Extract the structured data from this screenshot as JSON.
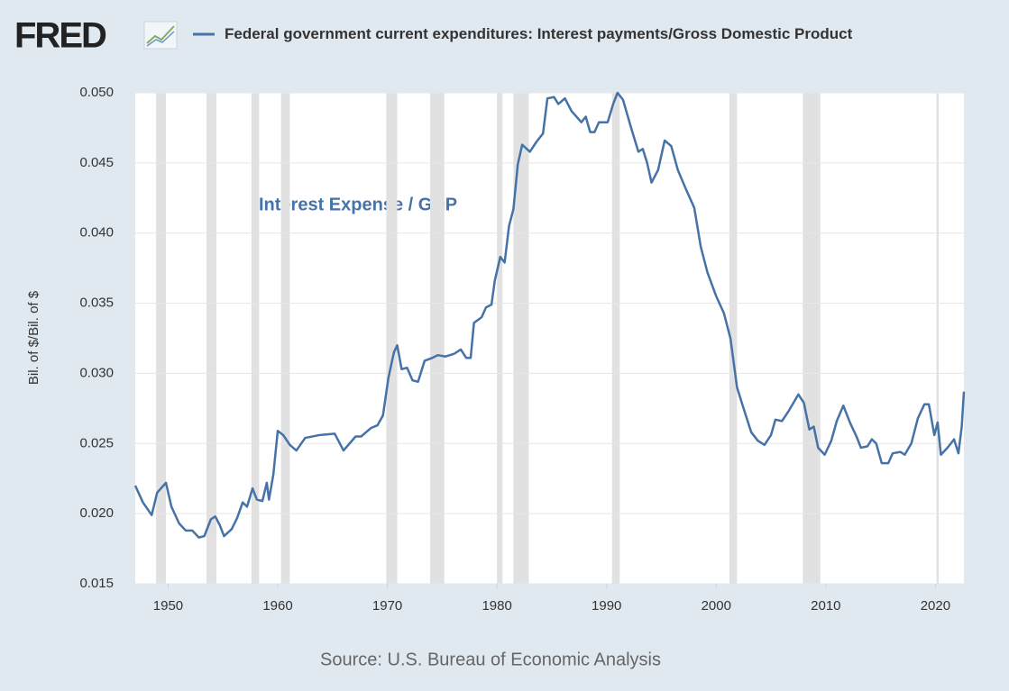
{
  "chart_data": {
    "type": "line",
    "logo": "FRED",
    "source": "Source: U.S. Bureau of Economic Analysis",
    "annotation": "Interest Expense / GDP",
    "ylabel": "Bil. of $/Bil. of $",
    "xlim": [
      1947,
      2022.6
    ],
    "xticks": [
      1950,
      1960,
      1970,
      1980,
      1990,
      2000,
      2010,
      2020
    ],
    "ylim": [
      0.015,
      0.05
    ],
    "yticks": [
      0.015,
      {
        "value": 0.02,
        "label": "0.020"
      },
      0.025,
      {
        "value": 0.03,
        "label": "0.030"
      },
      0.035,
      {
        "value": 0.04,
        "label": "0.040"
      },
      0.045,
      {
        "value": 0.05,
        "label": "0.050"
      }
    ],
    "grid": true,
    "recession_color": "#e1e1e1",
    "recessions": [
      [
        1948.9,
        1949.8
      ],
      [
        1953.5,
        1954.4
      ],
      [
        1957.6,
        1958.3
      ],
      [
        1960.3,
        1961.1
      ],
      [
        1969.9,
        1970.9
      ],
      [
        1973.9,
        1975.2
      ],
      [
        1980.0,
        1980.5
      ],
      [
        1981.5,
        1982.9
      ],
      [
        1990.5,
        1991.2
      ],
      [
        2001.2,
        2001.9
      ],
      [
        2007.9,
        2009.5
      ],
      [
        2020.1,
        2020.3
      ]
    ],
    "x": [
      1947.0,
      1947.7,
      1948.5,
      1949.0,
      1949.8,
      1950.3,
      1951.0,
      1951.6,
      1952.2,
      1952.8,
      1953.3,
      1953.9,
      1954.3,
      1954.7,
      1955.1,
      1955.8,
      1956.3,
      1956.8,
      1957.2,
      1957.7,
      1958.1,
      1958.6,
      1959.0,
      1959.2,
      1959.6,
      1960.0,
      1960.5,
      1961.1,
      1961.7,
      1962.5,
      1963.8,
      1965.2,
      1966.0,
      1967.1,
      1967.6,
      1968.5,
      1969.1,
      1969.6,
      1970.1,
      1970.6,
      1970.9,
      1971.3,
      1971.8,
      1972.3,
      1972.8,
      1973.4,
      1974.1,
      1974.6,
      1975.3,
      1976.1,
      1976.7,
      1977.2,
      1977.6,
      1977.9,
      1978.6,
      1979.0,
      1979.5,
      1979.8,
      1980.3,
      1980.7,
      1981.1,
      1981.5,
      1981.9,
      1982.3,
      1983.0,
      1983.6,
      1984.2,
      1984.6,
      1985.2,
      1985.6,
      1986.2,
      1986.8,
      1987.7,
      1988.1,
      1988.5,
      1988.9,
      1989.3,
      1990.1,
      1990.6,
      1991.0,
      1991.5,
      1992.2,
      1992.9,
      1993.3,
      1993.7,
      1994.1,
      1994.7,
      1995.3,
      1995.9,
      1996.5,
      1997.2,
      1998.0,
      1998.6,
      1999.2,
      2000.0,
      2000.7,
      2001.3,
      2001.9,
      2002.5,
      2003.2,
      2003.8,
      2004.4,
      2005.0,
      2005.4,
      2006.0,
      2006.6,
      2007.5,
      2008.0,
      2008.5,
      2008.9,
      2009.3,
      2009.9,
      2010.5,
      2011.0,
      2011.6,
      2012.2,
      2012.8,
      2013.2,
      2013.8,
      2014.2,
      2014.6,
      2015.1,
      2015.7,
      2016.1,
      2016.8,
      2017.2,
      2017.8,
      2018.4,
      2019.0,
      2019.4,
      2019.9,
      2020.2,
      2020.5,
      2021.1,
      2021.7,
      2022.1,
      2022.4,
      2022.6
    ],
    "series": [
      {
        "name": "Federal government current expenditures: Interest payments/Gross Domestic Product",
        "color": "#4572a7",
        "values": [
          0.022,
          0.0208,
          0.0199,
          0.0215,
          0.0222,
          0.0205,
          0.0193,
          0.0188,
          0.0188,
          0.0183,
          0.0184,
          0.0196,
          0.0198,
          0.0192,
          0.0184,
          0.0189,
          0.0197,
          0.0208,
          0.0205,
          0.0218,
          0.021,
          0.0209,
          0.0222,
          0.021,
          0.0228,
          0.0259,
          0.0256,
          0.0249,
          0.0245,
          0.0254,
          0.0256,
          0.0257,
          0.0245,
          0.0255,
          0.0255,
          0.0261,
          0.0263,
          0.027,
          0.0297,
          0.0315,
          0.032,
          0.0303,
          0.0304,
          0.0295,
          0.0294,
          0.0309,
          0.0311,
          0.0313,
          0.0312,
          0.0314,
          0.0317,
          0.0311,
          0.0311,
          0.0336,
          0.034,
          0.0347,
          0.0349,
          0.0366,
          0.0383,
          0.0379,
          0.0405,
          0.0417,
          0.0449,
          0.0463,
          0.0458,
          0.0465,
          0.0471,
          0.0496,
          0.0497,
          0.0492,
          0.0496,
          0.0487,
          0.0479,
          0.0483,
          0.0472,
          0.0472,
          0.0479,
          0.0479,
          0.0492,
          0.05,
          0.0495,
          0.0476,
          0.0458,
          0.046,
          0.045,
          0.0436,
          0.0445,
          0.0466,
          0.0462,
          0.0445,
          0.0432,
          0.0418,
          0.039,
          0.0372,
          0.0355,
          0.0343,
          0.0325,
          0.029,
          0.0275,
          0.0258,
          0.0252,
          0.0249,
          0.0256,
          0.0267,
          0.0266,
          0.0273,
          0.0285,
          0.0279,
          0.026,
          0.0262,
          0.0247,
          0.0242,
          0.0252,
          0.0266,
          0.0277,
          0.0265,
          0.0255,
          0.0247,
          0.0248,
          0.0253,
          0.025,
          0.0236,
          0.0236,
          0.0243,
          0.0244,
          0.0242,
          0.025,
          0.0268,
          0.0278,
          0.0278,
          0.0256,
          0.0265,
          0.0242,
          0.0247,
          0.0253,
          0.0243,
          0.0262,
          0.0287
        ]
      }
    ]
  }
}
